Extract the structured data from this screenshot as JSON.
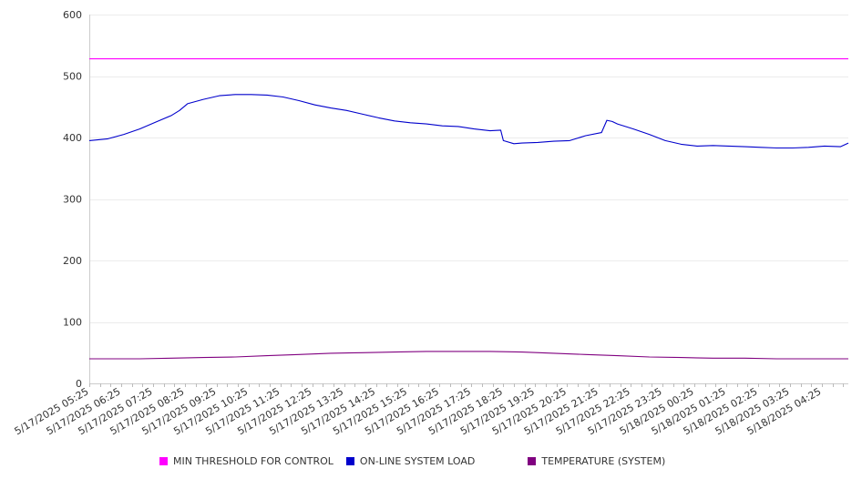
{
  "chart_data": {
    "type": "line",
    "title": "",
    "xlabel": "",
    "ylabel": "",
    "ylim": [
      0,
      600
    ],
    "yticks": [
      0,
      100,
      200,
      300,
      400,
      500,
      600
    ],
    "grid": true,
    "legend_position": "bottom",
    "x_tick_labels": [
      "5/17/2025 05:25",
      "5/17/2025 06:25",
      "5/17/2025 07:25",
      "5/17/2025 08:25",
      "5/17/2025 09:25",
      "5/17/2025 10:25",
      "5/17/2025 11:25",
      "5/17/2025 12:25",
      "5/17/2025 13:25",
      "5/17/2025 14:25",
      "5/17/2025 15:25",
      "5/17/2025 16:25",
      "5/17/2025 17:25",
      "5/17/2025 18:25",
      "5/17/2025 19:25",
      "5/17/2025 20:25",
      "5/17/2025 21:25",
      "5/17/2025 22:25",
      "5/17/2025 23:25",
      "5/18/2025 00:25",
      "5/18/2025 01:25",
      "5/18/2025 02:25",
      "5/18/2025 03:25",
      "5/18/2025 04:25"
    ],
    "x_start": "5/17/2025 05:25",
    "x_end": "5/18/2025 05:15",
    "series": [
      {
        "name": "MIN THRESHOLD FOR CONTROL",
        "color": "#ff00ff",
        "x": [
          "5/17/2025 05:25",
          "5/18/2025 05:15"
        ],
        "values": [
          528,
          528
        ]
      },
      {
        "name": "ON-LINE SYSTEM LOAD",
        "color": "#0000cc",
        "x": [
          "5/17/2025 05:25",
          "5/17/2025 06:00",
          "5/17/2025 06:30",
          "5/17/2025 07:00",
          "5/17/2025 07:30",
          "5/17/2025 08:00",
          "5/17/2025 08:15",
          "5/17/2025 08:30",
          "5/17/2025 09:00",
          "5/17/2025 09:30",
          "5/17/2025 10:00",
          "5/17/2025 10:30",
          "5/17/2025 11:00",
          "5/17/2025 11:30",
          "5/17/2025 12:00",
          "5/17/2025 12:30",
          "5/17/2025 13:00",
          "5/17/2025 13:30",
          "5/17/2025 14:00",
          "5/17/2025 14:30",
          "5/17/2025 15:00",
          "5/17/2025 15:30",
          "5/17/2025 16:00",
          "5/17/2025 16:30",
          "5/17/2025 17:00",
          "5/17/2025 17:30",
          "5/17/2025 18:00",
          "5/17/2025 18:20",
          "5/17/2025 18:25",
          "5/17/2025 18:45",
          "5/17/2025 19:00",
          "5/17/2025 19:30",
          "5/17/2025 20:00",
          "5/17/2025 20:30",
          "5/17/2025 21:00",
          "5/17/2025 21:30",
          "5/17/2025 21:40",
          "5/17/2025 21:50",
          "5/17/2025 22:00",
          "5/17/2025 22:30",
          "5/17/2025 23:00",
          "5/17/2025 23:30",
          "5/18/2025 00:00",
          "5/18/2025 00:30",
          "5/18/2025 01:00",
          "5/18/2025 01:30",
          "5/18/2025 02:00",
          "5/18/2025 02:30",
          "5/18/2025 03:00",
          "5/18/2025 03:30",
          "5/18/2025 04:00",
          "5/18/2025 04:30",
          "5/18/2025 05:00",
          "5/18/2025 05:15"
        ],
        "values": [
          395,
          398,
          405,
          414,
          425,
          436,
          444,
          455,
          462,
          468,
          470,
          470,
          469,
          466,
          460,
          453,
          448,
          444,
          438,
          432,
          427,
          424,
          422,
          419,
          418,
          414,
          411,
          412,
          395,
          390,
          391,
          392,
          394,
          395,
          403,
          408,
          428,
          426,
          422,
          414,
          405,
          395,
          389,
          386,
          387,
          386,
          385,
          384,
          383,
          383,
          384,
          386,
          385,
          391
        ]
      },
      {
        "name": "TEMPERATURE (SYSTEM)",
        "color": "#800080",
        "x": [
          "5/17/2025 05:25",
          "5/17/2025 06:00",
          "5/17/2025 07:00",
          "5/17/2025 08:00",
          "5/17/2025 09:00",
          "5/17/2025 10:00",
          "5/17/2025 11:00",
          "5/17/2025 12:00",
          "5/17/2025 13:00",
          "5/17/2025 14:00",
          "5/17/2025 15:00",
          "5/17/2025 16:00",
          "5/17/2025 17:00",
          "5/17/2025 18:00",
          "5/17/2025 19:00",
          "5/17/2025 20:00",
          "5/17/2025 21:00",
          "5/17/2025 22:00",
          "5/17/2025 23:00",
          "5/18/2025 00:00",
          "5/18/2025 01:00",
          "5/18/2025 02:00",
          "5/18/2025 03:00",
          "5/18/2025 04:00",
          "5/18/2025 05:15"
        ],
        "values": [
          40,
          40,
          40,
          41,
          42,
          43,
          45,
          47,
          49,
          50,
          51,
          52,
          52,
          52,
          51,
          49,
          47,
          45,
          43,
          42,
          41,
          41,
          40,
          40,
          40
        ]
      }
    ]
  }
}
